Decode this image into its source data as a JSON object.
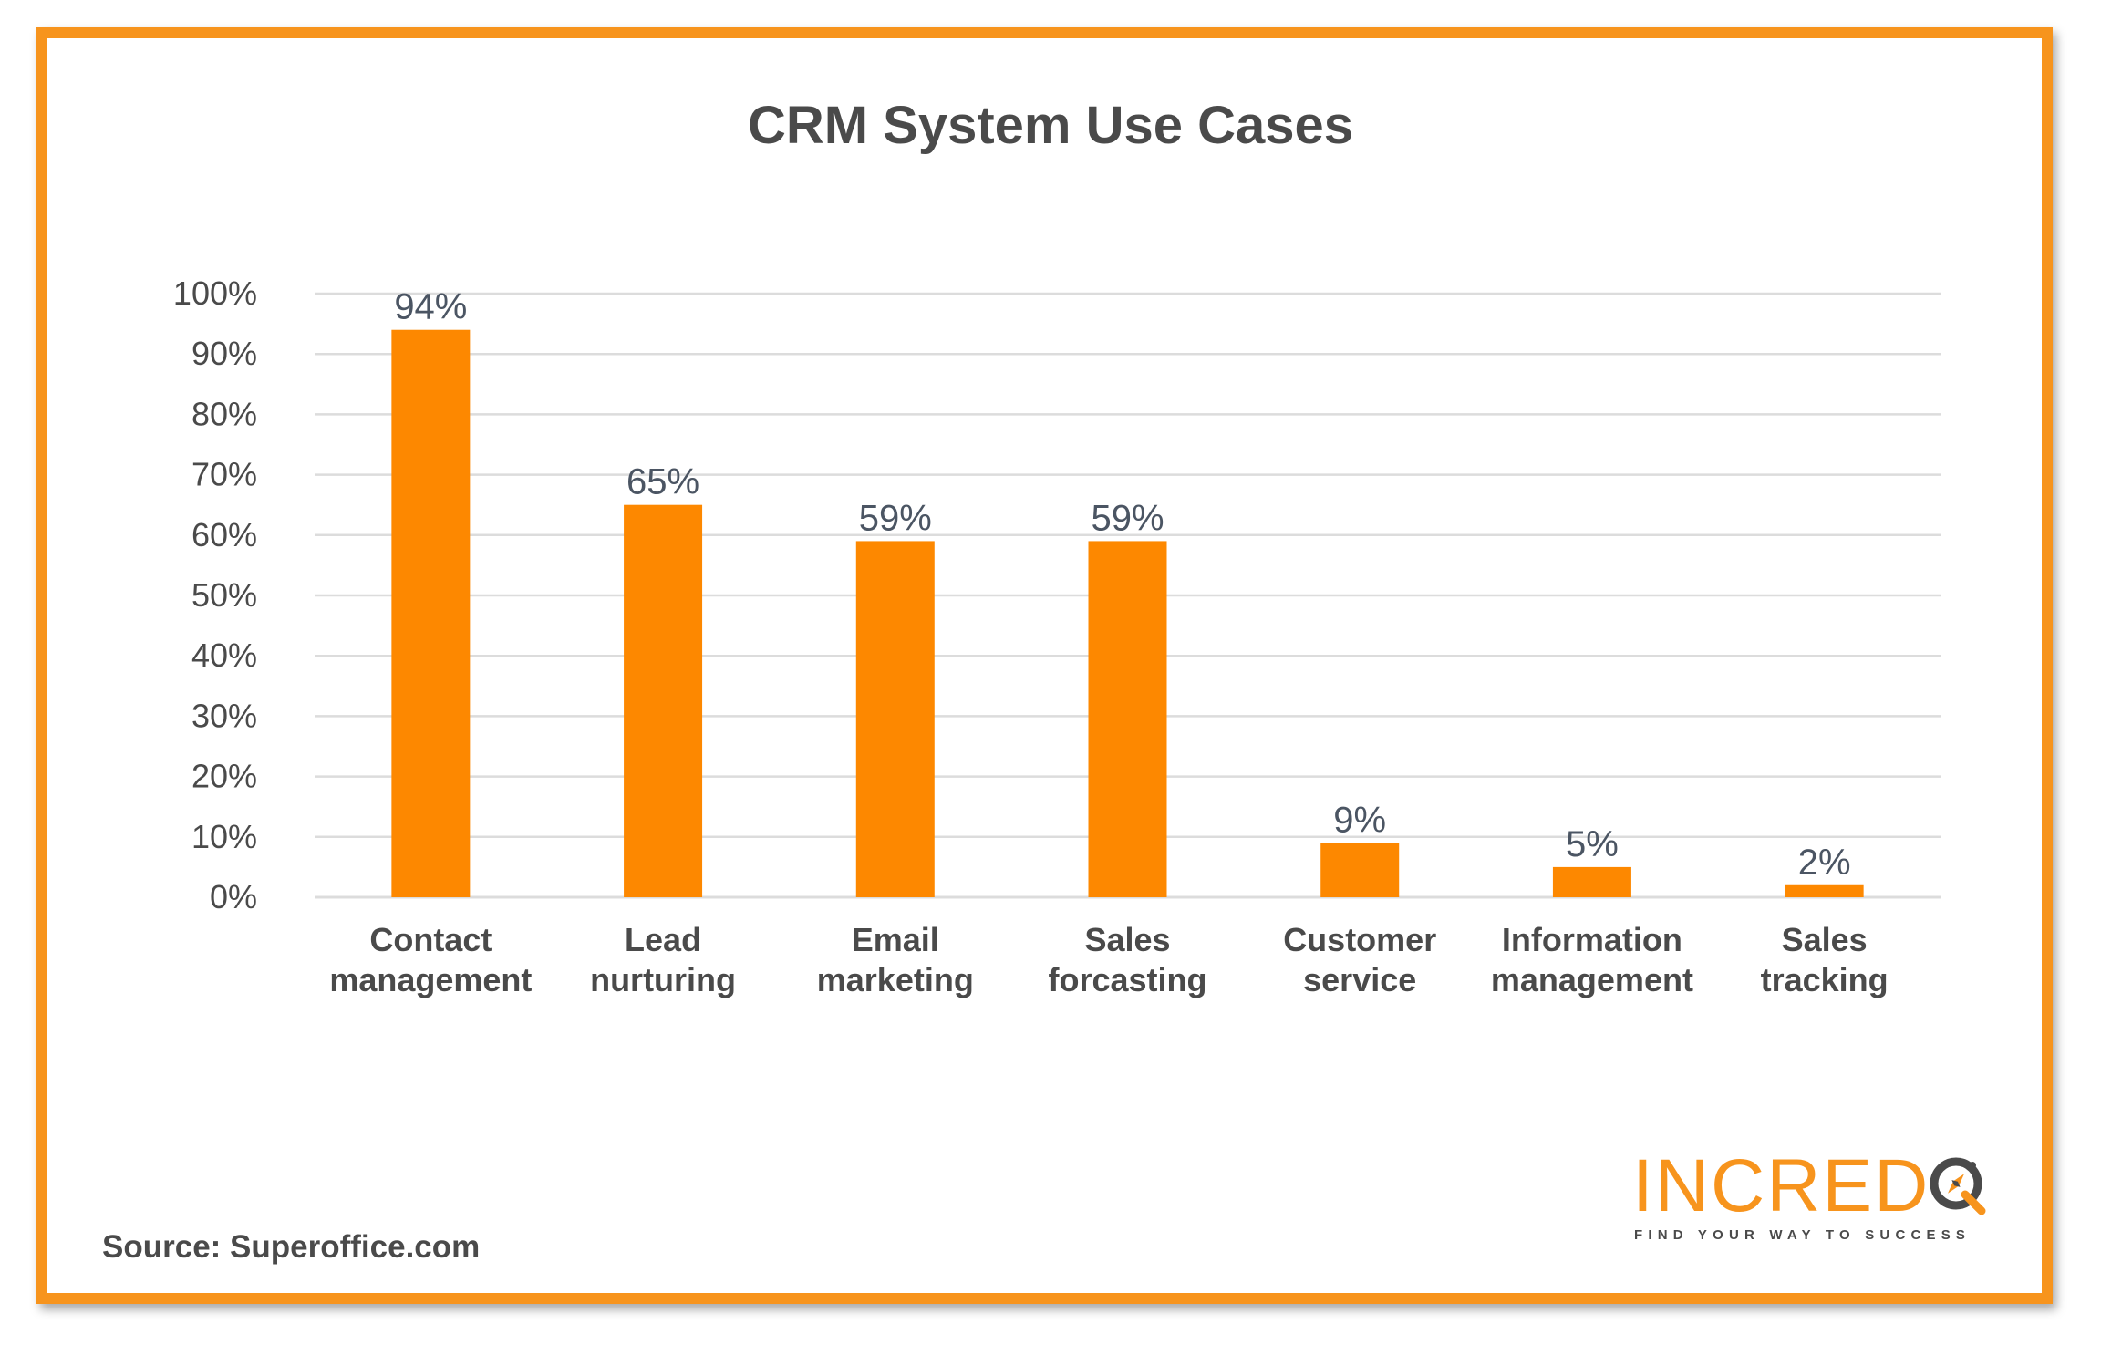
{
  "chart_data": {
    "type": "bar",
    "title": "CRM System Use Cases",
    "categories": [
      [
        "Contact",
        "management"
      ],
      [
        "Lead",
        "nurturing"
      ],
      [
        "Email",
        "marketing"
      ],
      [
        "Sales",
        "forcasting"
      ],
      [
        "Customer",
        "service"
      ],
      [
        "Information",
        "management"
      ],
      [
        "Sales",
        "tracking"
      ]
    ],
    "values": [
      94,
      65,
      59,
      59,
      9,
      5,
      2
    ],
    "data_labels": [
      "94%",
      "65%",
      "59%",
      "59%",
      "9%",
      "5%",
      "2%"
    ],
    "yticks": [
      "0%",
      "10%",
      "20%",
      "30%",
      "40%",
      "50%",
      "60%",
      "70%",
      "80%",
      "90%",
      "100%"
    ],
    "ylim": [
      0,
      100
    ],
    "grid": true,
    "colors": {
      "bar": "#fd8800",
      "frame": "#f7941d",
      "text": "#4a4a4a",
      "data_label": "#4b5563",
      "grid": "#dcdcdc"
    }
  },
  "source": "Source: Superoffice.com",
  "logo": {
    "word": "INCRED",
    "tagline": "FIND YOUR WAY TO SUCCESS",
    "icon": "compass-q-icon"
  }
}
